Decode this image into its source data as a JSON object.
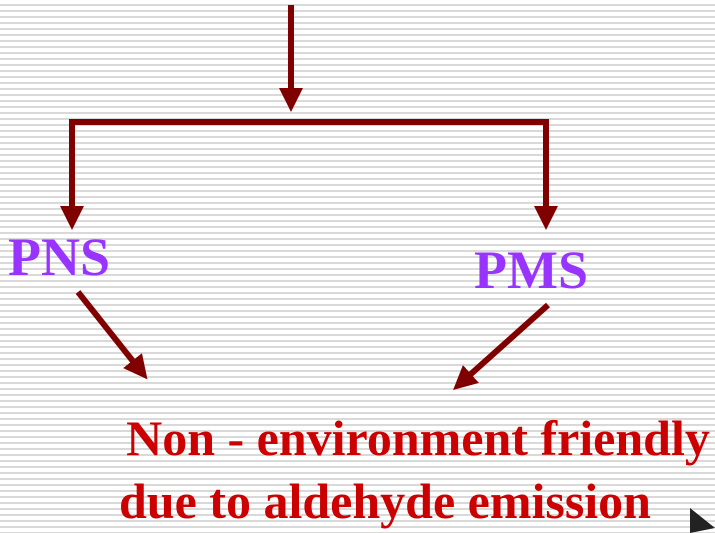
{
  "nodes": [
    {
      "label": "PNS"
    },
    {
      "label": "PMS"
    }
  ],
  "result": {
    "lines": [
      "Non - environment friendly",
      "due to aldehyde emission"
    ]
  }
}
